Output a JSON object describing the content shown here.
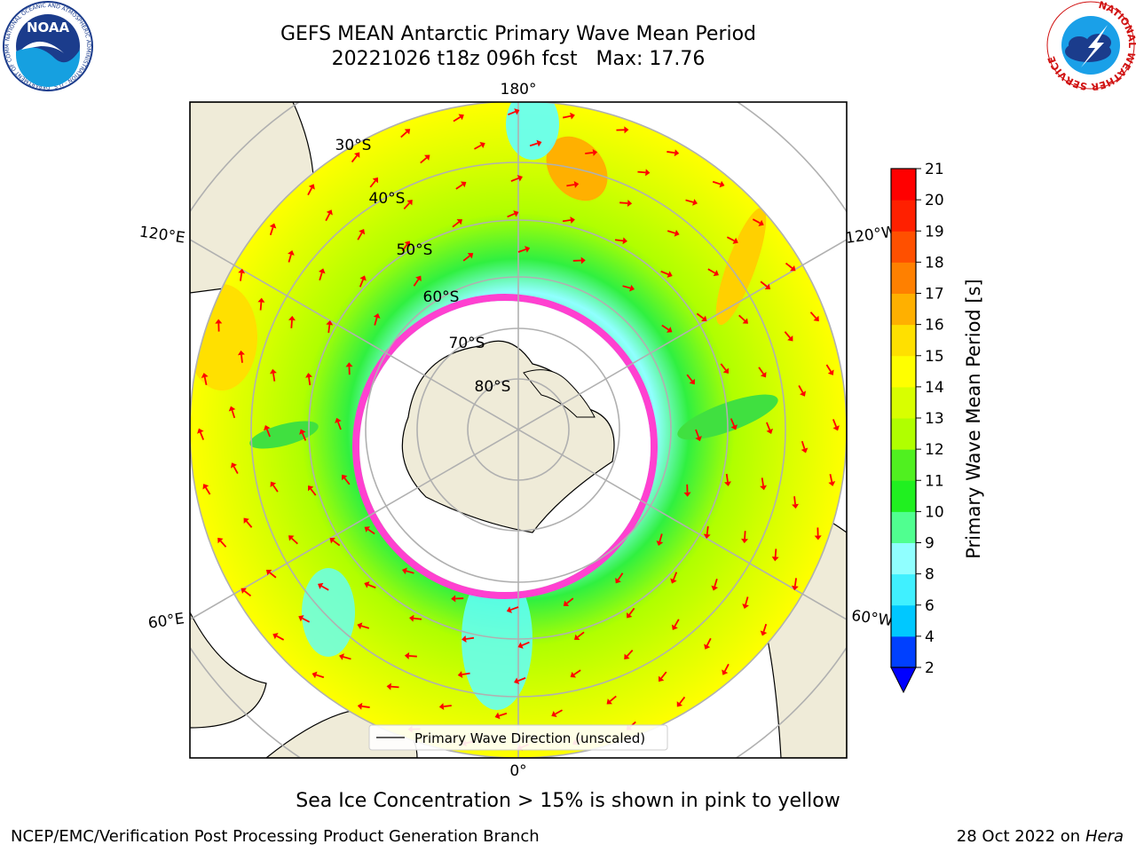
{
  "title": {
    "line1": "GEFS MEAN Antarctic Primary Wave Mean Period",
    "line2": "20221026 t18z 096h fcst   Max: 17.76"
  },
  "subtitle": "Sea Ice Concentration > 15% is shown in pink to yellow",
  "footer": {
    "left": "NCEP/EMC/Verification Post Processing Product Generation Branch",
    "right_prefix": "28 Oct 2022 on ",
    "right_host": "Hera"
  },
  "logos": {
    "left": {
      "text": "NOAA",
      "ring_text": "NATIONAL OCEANIC AND ATMOSPHERIC ADMINISTRATION · U.S. DEPARTMENT OF COMMERCE ·"
    },
    "right": {
      "ring_text": "NATIONAL WEATHER SERVICE"
    }
  },
  "map": {
    "projection": "south polar stereographic",
    "longitude_labels": {
      "top": "180°",
      "bottom": "0°",
      "left_upper": "120°E",
      "left_lower": "60°E",
      "right_upper": "120°W",
      "right_lower": "60°W"
    },
    "latitude_labels": [
      "30°S",
      "40°S",
      "50°S",
      "60°S",
      "70°S",
      "80°S"
    ],
    "legend": "Primary Wave Direction (unscaled)",
    "colors": {
      "land": "#efebd8",
      "ocean_edge": "#ffffff",
      "arrow": "#ff0000",
      "ice_edge": "#ff40d0",
      "grid": "#b0b0b0"
    }
  },
  "colorbar": {
    "label": "Primary Wave Mean Period [s]",
    "ticks": [
      "2",
      "4",
      "6",
      "8",
      "9",
      "10",
      "11",
      "12",
      "13",
      "14",
      "15",
      "16",
      "17",
      "18",
      "19",
      "20",
      "21"
    ],
    "colors": [
      "#0040ff",
      "#00c8ff",
      "#40f0ff",
      "#90ffff",
      "#50ff90",
      "#20f020",
      "#50f020",
      "#b0ff00",
      "#d8ff00",
      "#ffff00",
      "#ffe000",
      "#ffb000",
      "#ff8000",
      "#ff5000",
      "#ff2000",
      "#ff0000"
    ],
    "extend_min_color": "#0000ff"
  }
}
